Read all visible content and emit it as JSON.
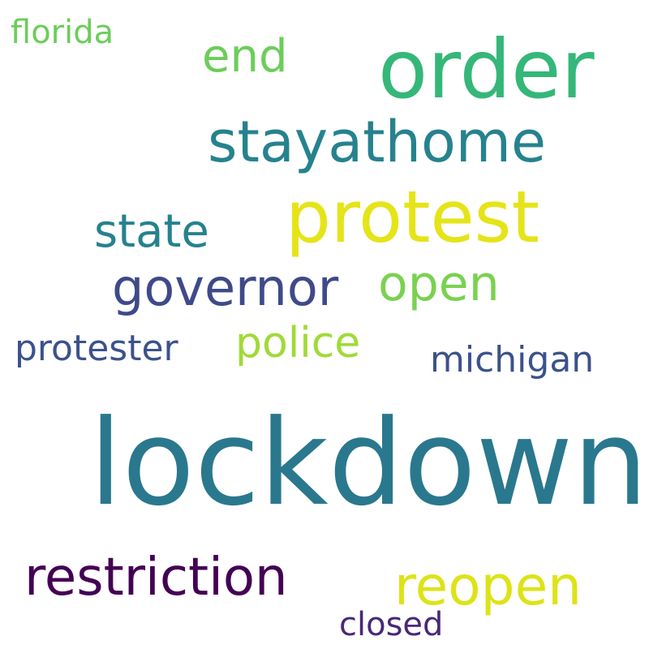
{
  "words": [
    {
      "id": "florida",
      "text": "florida",
      "color": "#6ccd5a"
    },
    {
      "id": "end",
      "text": "end",
      "color": "#6ccd5a"
    },
    {
      "id": "order",
      "text": "order",
      "color": "#35b779"
    },
    {
      "id": "stayathome",
      "text": "stayathome",
      "color": "#26828e"
    },
    {
      "id": "protest",
      "text": "protest",
      "color": "#e5e419"
    },
    {
      "id": "state",
      "text": "state",
      "color": "#26828e"
    },
    {
      "id": "governor",
      "text": "governor",
      "color": "#3e4a89"
    },
    {
      "id": "open",
      "text": "open",
      "color": "#7ad151"
    },
    {
      "id": "protester",
      "text": "protester",
      "color": "#3b528b"
    },
    {
      "id": "police",
      "text": "police",
      "color": "#a0da39"
    },
    {
      "id": "michigan",
      "text": "michigan",
      "color": "#3b528b"
    },
    {
      "id": "lockdown",
      "text": "lockdown",
      "color": "#2a788e"
    },
    {
      "id": "restriction",
      "text": "restriction",
      "color": "#440154"
    },
    {
      "id": "reopen",
      "text": "reopen",
      "color": "#dde318"
    },
    {
      "id": "closed",
      "text": "closed",
      "color": "#482878"
    }
  ]
}
